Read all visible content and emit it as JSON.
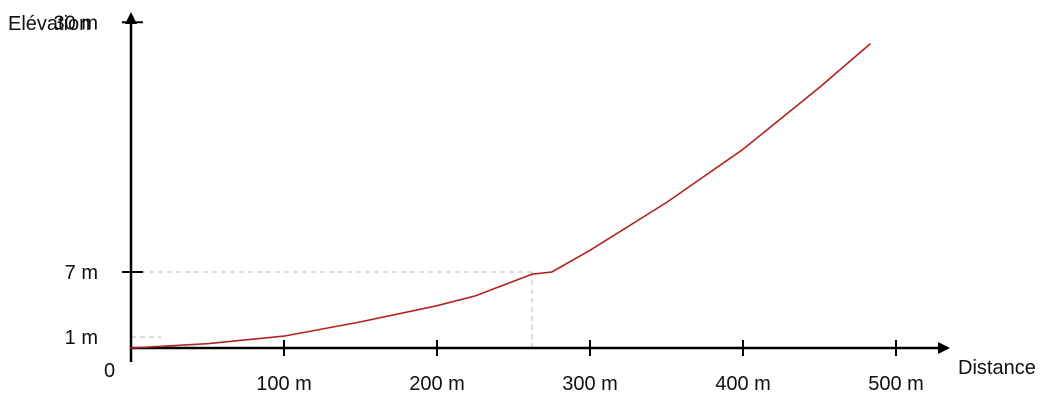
{
  "chart_data": {
    "type": "line",
    "xlabel": "Distance",
    "ylabel": "Elévation",
    "origin_label": "0",
    "x_ticks": [
      {
        "value": 100,
        "label": "100 m"
      },
      {
        "value": 200,
        "label": "200 m"
      },
      {
        "value": 300,
        "label": "300 m"
      },
      {
        "value": 400,
        "label": "400 m"
      },
      {
        "value": 500,
        "label": "500 m"
      }
    ],
    "y_ticks": [
      {
        "value": 1,
        "label": "1 m"
      },
      {
        "value": 7,
        "label": "7 m"
      },
      {
        "value": 30,
        "label": "30 m"
      }
    ],
    "series": [
      {
        "color": "#b22222",
        "x": [
          0,
          50,
          100,
          150,
          200,
          225,
          262,
          275,
          300,
          350,
          400,
          450,
          483
        ],
        "y": [
          0,
          0.4,
          1.1,
          2.4,
          3.9,
          4.8,
          6.8,
          7.0,
          9.0,
          13.4,
          18.3,
          24.0,
          28.0
        ]
      }
    ],
    "reference_lines": [
      {
        "type": "horizontal",
        "y": 1,
        "x_end": 0
      },
      {
        "type": "horizontal",
        "y": 7,
        "x_end": 262
      },
      {
        "type": "vertical",
        "x": 262,
        "y_end": 7
      }
    ],
    "xlim": [
      0,
      530
    ],
    "ylim": [
      0,
      36
    ],
    "grid": false,
    "legend": "none"
  }
}
